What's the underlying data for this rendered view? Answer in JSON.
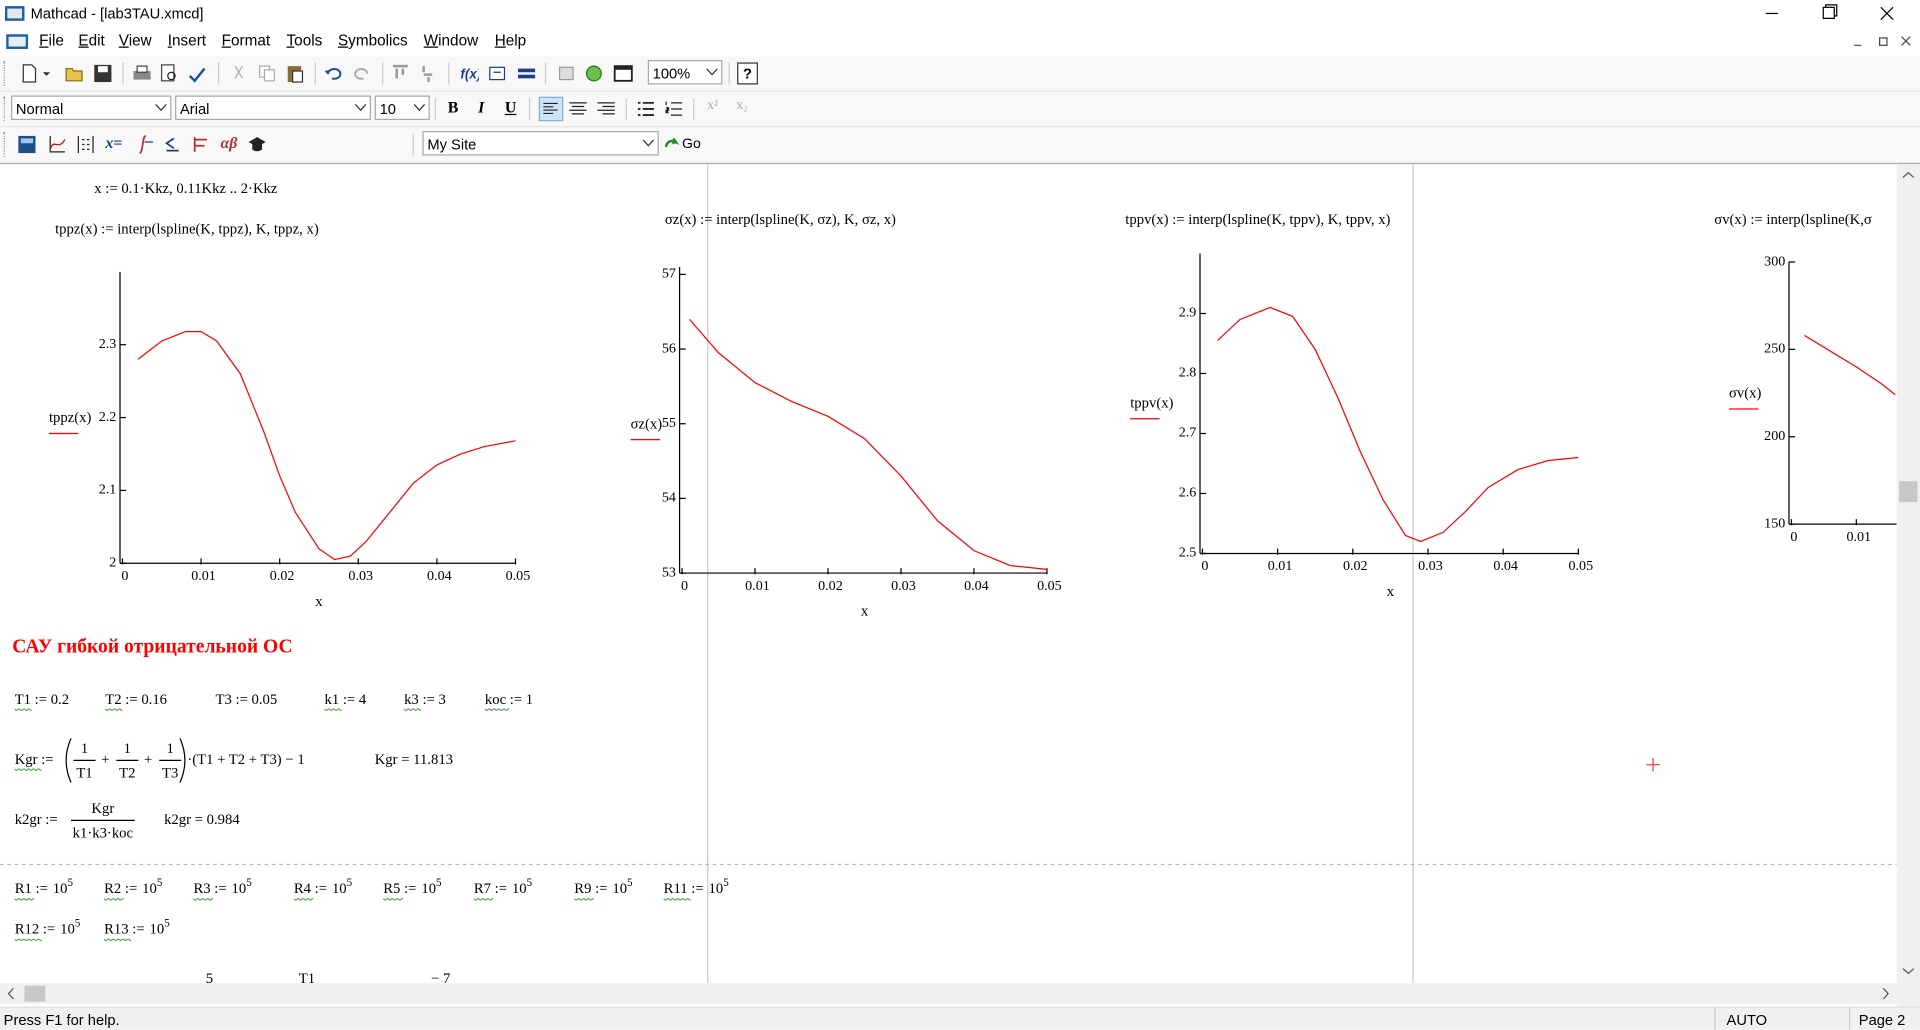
{
  "window": {
    "title": "Mathcad - [lab3TAU.xmcd]"
  },
  "menu": [
    "File",
    "Edit",
    "View",
    "Insert",
    "Format",
    "Tools",
    "Symbolics",
    "Window",
    "Help"
  ],
  "toolbar": {
    "zoom": "100%",
    "help": "?",
    "style": "Normal",
    "font": "Arial",
    "size": "10",
    "format_buttons": [
      "B",
      "I",
      "U"
    ],
    "script_buttons": [
      "x²",
      "x₂"
    ],
    "math_buttons": [
      "x=",
      "αβ"
    ],
    "site": "My Site",
    "go": "Go"
  },
  "worksheet": {
    "range_def": "x := 0.1·Kkz, 0.11Kkz .. 2·Kkz",
    "heading": "САУ гибкой отрицательной ОС",
    "constants": [
      "T1 := 0.2",
      "T2 := 0.16",
      "T3 := 0.05",
      "k1 := 4",
      "k3 := 3",
      "koc := 1"
    ],
    "kgr": {
      "lhs": "Kgr :=",
      "fractions": [
        {
          "num": "1",
          "den": "T1"
        },
        {
          "num": "1",
          "den": "T2"
        },
        {
          "num": "1",
          "den": "T3"
        }
      ],
      "ops": [
        "+",
        "+"
      ],
      "tail": "·(T1 + T2 + T3) − 1",
      "result": "Kgr = 11.813"
    },
    "k2gr": {
      "lhs": "k2gr :=",
      "num": "Kgr",
      "den": "k1·k3·koc",
      "result": "k2gr = 0.984"
    },
    "resistors": [
      {
        "lhs": "R1 :=",
        "base": "10",
        "exp": "5"
      },
      {
        "lhs": "R2 :=",
        "base": "10",
        "exp": "5"
      },
      {
        "lhs": "R3 :=",
        "base": "10",
        "exp": "5"
      },
      {
        "lhs": "R4 :=",
        "base": "10",
        "exp": "5"
      },
      {
        "lhs": "R5 :=",
        "base": "10",
        "exp": "5"
      },
      {
        "lhs": "R7 :=",
        "base": "10",
        "exp": "5"
      },
      {
        "lhs": "R9 :=",
        "base": "10",
        "exp": "5"
      },
      {
        "lhs": "R11 :=",
        "base": "10",
        "exp": "5"
      },
      {
        "lhs": "R12 :=",
        "base": "10",
        "exp": "5"
      },
      {
        "lhs": "R13 :=",
        "base": "10",
        "exp": "5"
      }
    ],
    "cut_off": [
      "5",
      "T1",
      "− 7"
    ]
  },
  "plots": [
    {
      "definition": "tppz(x) := interp(lspline(K, tppz), K, tppz, x)",
      "ylabel": "tppz(x)",
      "xlabel": "x",
      "color": "#ff0000",
      "xlim": [
        0,
        0.05
      ],
      "ylim": [
        2,
        2.4
      ],
      "xticks": [
        0,
        0.01,
        0.02,
        0.03,
        0.04,
        0.05
      ],
      "yticks": [
        2,
        2.1,
        2.2,
        2.3
      ],
      "x": [
        0.002,
        0.005,
        0.008,
        0.01,
        0.012,
        0.015,
        0.018,
        0.02,
        0.022,
        0.025,
        0.027,
        0.029,
        0.031,
        0.034,
        0.037,
        0.04,
        0.043,
        0.046,
        0.05
      ],
      "values": [
        2.28,
        2.305,
        2.318,
        2.318,
        2.305,
        2.26,
        2.18,
        2.12,
        2.07,
        2.02,
        2.005,
        2.01,
        2.03,
        2.07,
        2.11,
        2.135,
        2.15,
        2.16,
        2.168
      ]
    },
    {
      "definition": "σz(x) := interp(lspline(K, σz), K, σz, x)",
      "ylabel": "σz(x)",
      "xlabel": "x",
      "color": "#ff0000",
      "xlim": [
        0,
        0.05
      ],
      "ylim": [
        53,
        57.1
      ],
      "xticks": [
        0,
        0.01,
        0.02,
        0.03,
        0.04,
        0.05
      ],
      "yticks": [
        53,
        54,
        55,
        56,
        57
      ],
      "x": [
        0.001,
        0.005,
        0.01,
        0.015,
        0.02,
        0.025,
        0.03,
        0.035,
        0.04,
        0.045,
        0.05
      ],
      "values": [
        56.4,
        55.95,
        55.55,
        55.3,
        55.1,
        54.8,
        54.3,
        53.7,
        53.3,
        53.1,
        53.05
      ]
    },
    {
      "definition": "tppv(x) := interp(lspline(K, tppv), K, tppv, x)",
      "ylabel": "tppv(x)",
      "xlabel": "x",
      "color": "#ff0000",
      "xlim": [
        0,
        0.05
      ],
      "ylim": [
        2.5,
        3.0
      ],
      "xticks": [
        0,
        0.01,
        0.02,
        0.03,
        0.04,
        0.05
      ],
      "yticks": [
        2.5,
        2.6,
        2.7,
        2.8,
        2.9
      ],
      "x": [
        0.002,
        0.005,
        0.009,
        0.012,
        0.015,
        0.018,
        0.021,
        0.024,
        0.027,
        0.029,
        0.032,
        0.035,
        0.038,
        0.042,
        0.046,
        0.05
      ],
      "values": [
        2.855,
        2.89,
        2.91,
        2.895,
        2.84,
        2.76,
        2.67,
        2.59,
        2.53,
        2.52,
        2.535,
        2.57,
        2.61,
        2.64,
        2.655,
        2.66
      ]
    },
    {
      "definition": "σv(x) := interp(lspline(K,σ",
      "ylabel": "σv(x)",
      "color": "#ff0000",
      "xlim": [
        0,
        0.05
      ],
      "ylim": [
        150,
        300
      ],
      "xticks": [
        0,
        0.01
      ],
      "yticks": [
        150,
        200,
        250,
        300
      ],
      "x": [
        0.002,
        0.006,
        0.01,
        0.014,
        0.016
      ],
      "values": [
        258,
        249,
        240,
        230,
        224
      ]
    }
  ],
  "status": {
    "help": "Press F1 for help.",
    "mode": "AUTO",
    "page": "Page 2"
  }
}
